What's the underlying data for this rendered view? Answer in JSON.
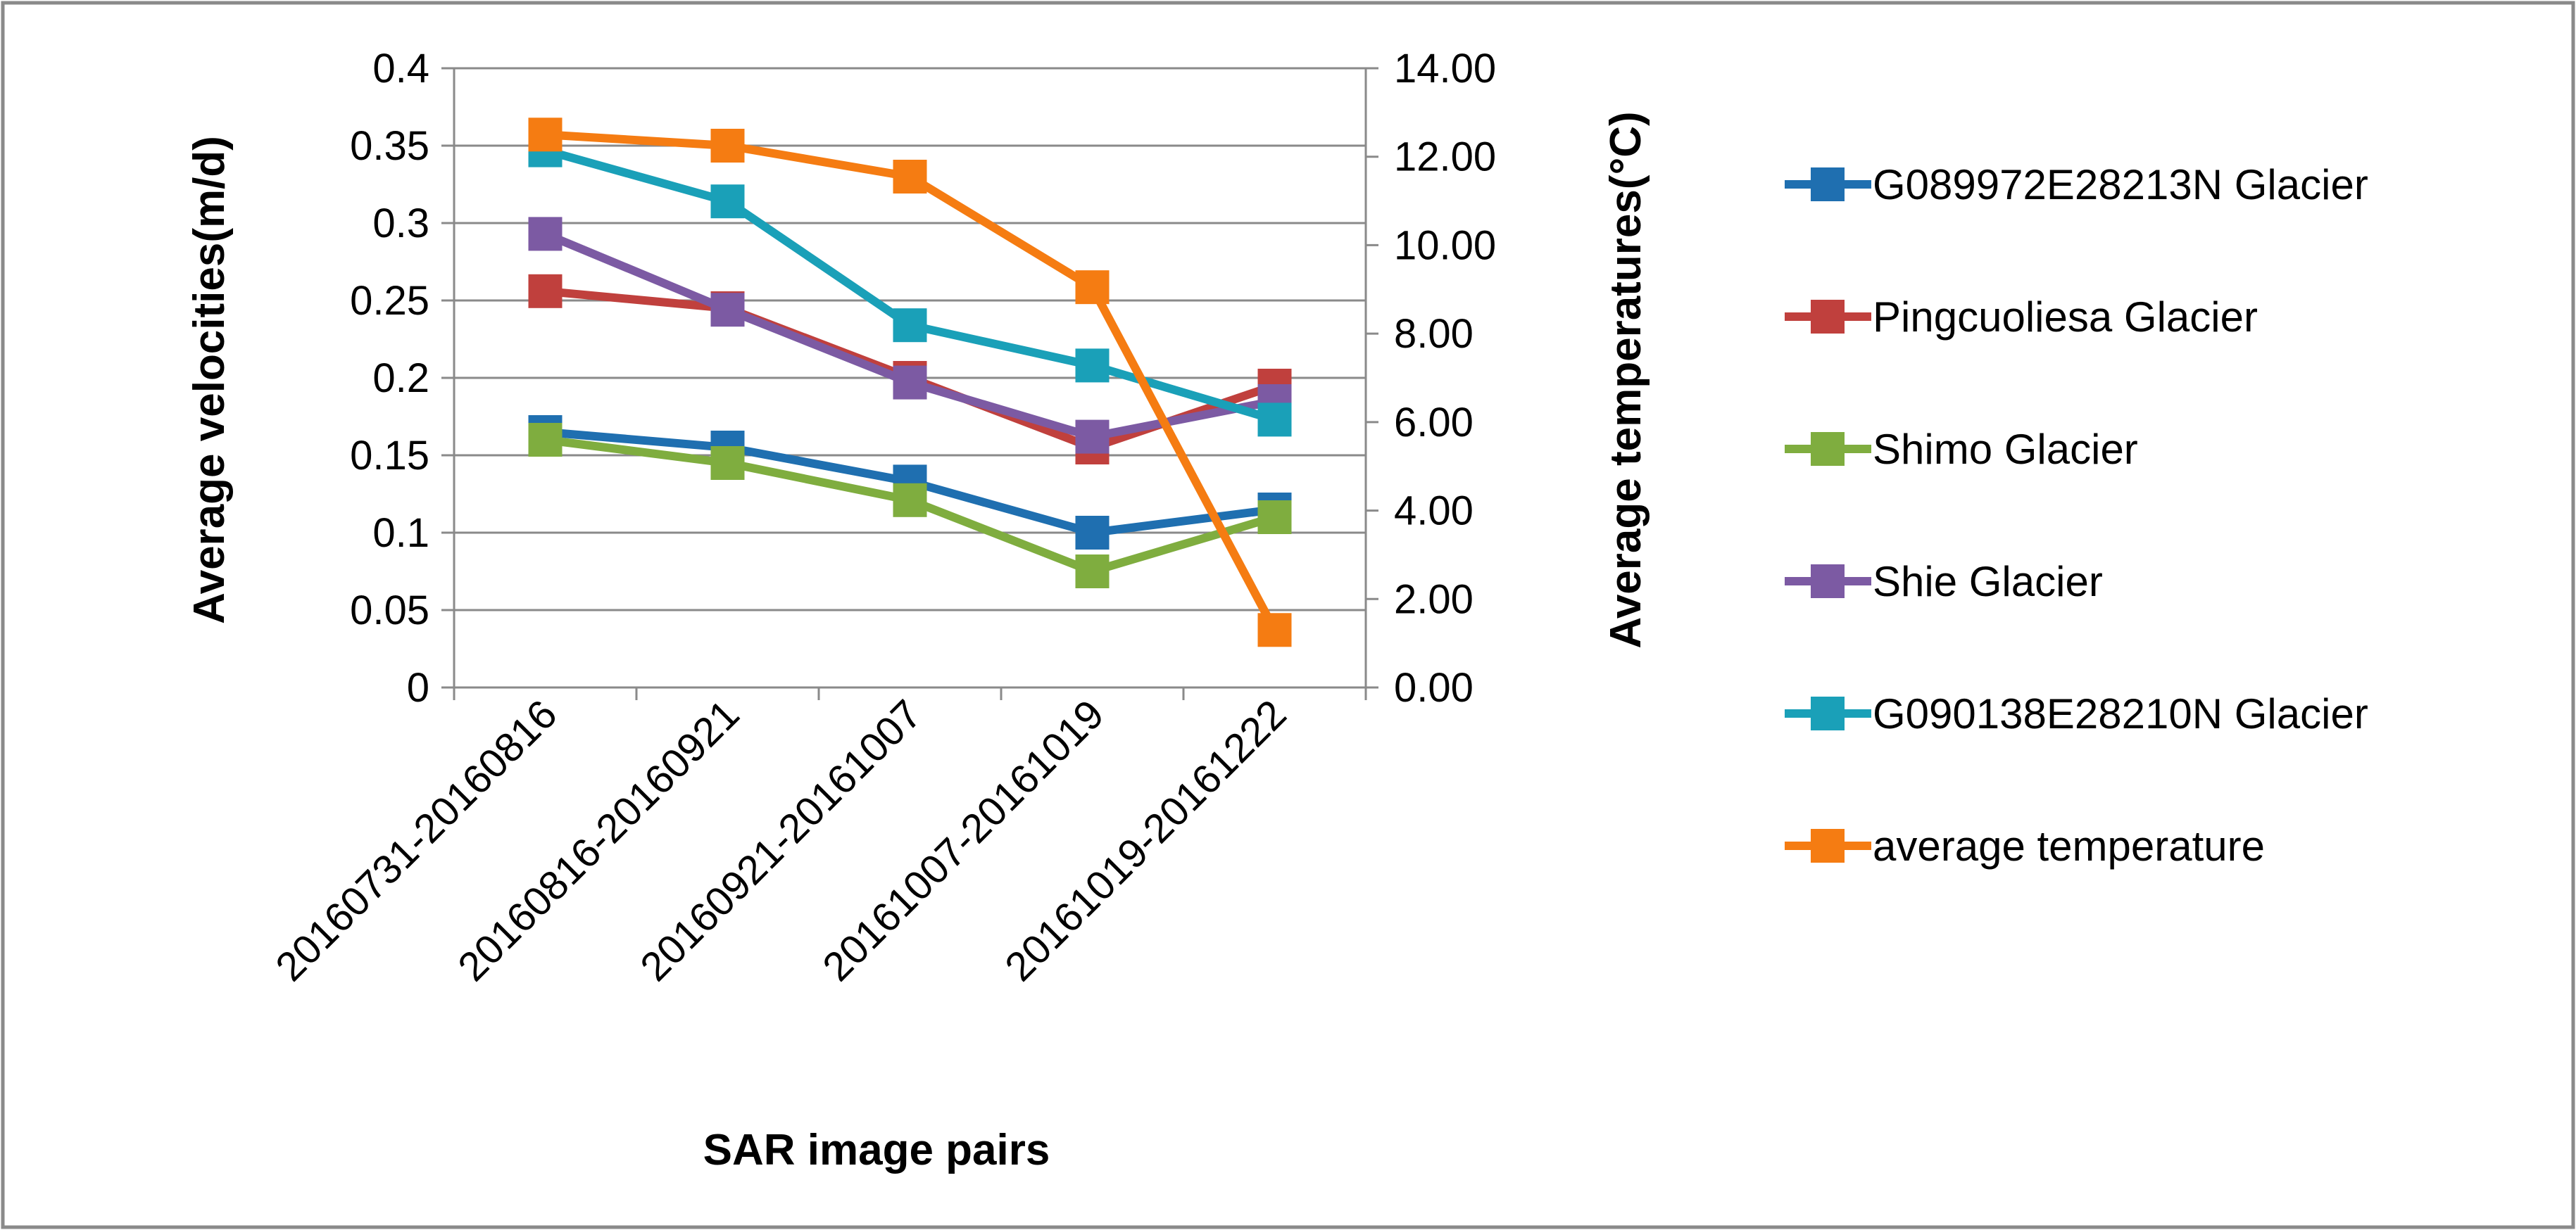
{
  "chart_data": {
    "type": "line",
    "title": "",
    "xlabel": "SAR image pairs",
    "ylabel": "Average velocities(m/d)",
    "y2label": "Average temperatures(°C)",
    "categories": [
      "20160731-20160816",
      "20160816-20160921",
      "20160921-20161007",
      "20161007-20161019",
      "20161019-20161222"
    ],
    "ylim": [
      0,
      0.4
    ],
    "yticks": [
      "0",
      "0.05",
      "0.1",
      "0.15",
      "0.2",
      "0.25",
      "0.3",
      "0.35",
      "0.4"
    ],
    "y2lim": [
      0,
      14
    ],
    "y2ticks": [
      "0.00",
      "2.00",
      "4.00",
      "6.00",
      "8.00",
      "10.00",
      "12.00",
      "14.00"
    ],
    "grid": true,
    "legend_position": "right",
    "series": [
      {
        "name": "G089972E28213N Glacier",
        "color": "#1f6fb0",
        "axis": "left",
        "values": [
          0.165,
          0.155,
          0.133,
          0.1,
          0.115
        ]
      },
      {
        "name": "Pingcuoliesa Glacier",
        "color": "#c0403d",
        "axis": "left",
        "values": [
          0.256,
          0.245,
          0.2,
          0.155,
          0.195
        ]
      },
      {
        "name": "Shimo Glacier",
        "color": "#7fad3f",
        "axis": "left",
        "values": [
          0.16,
          0.145,
          0.121,
          0.075,
          0.11
        ]
      },
      {
        "name": "Shie Glacier",
        "color": "#7c5aa3",
        "axis": "left",
        "values": [
          0.293,
          0.244,
          0.197,
          0.162,
          0.185
        ]
      },
      {
        "name": "G090138E28210N Glacier",
        "color": "#1aa0b8",
        "axis": "left",
        "values": [
          0.347,
          0.314,
          0.234,
          0.208,
          0.173
        ]
      },
      {
        "name": "average temperature",
        "color": "#f57c12",
        "axis": "right",
        "values": [
          12.5,
          12.25,
          11.55,
          9.05,
          1.3
        ]
      }
    ]
  }
}
